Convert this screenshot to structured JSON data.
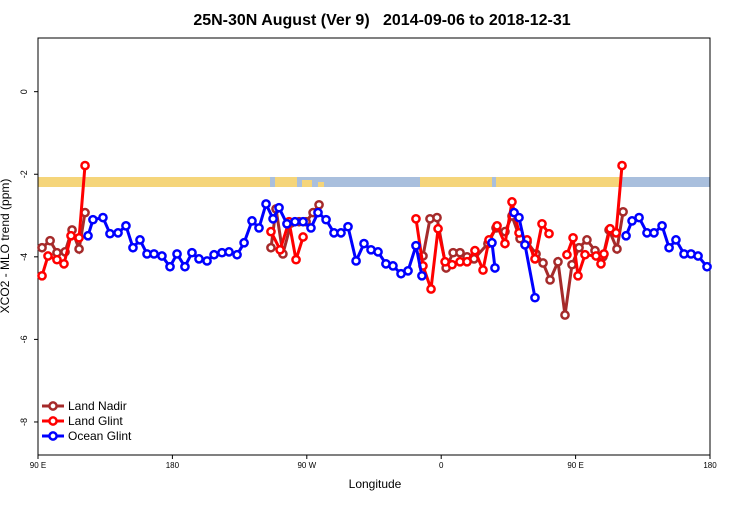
{
  "chart_data": {
    "type": "line",
    "title": "25N-30N August (Ver 9)   2014-09-06 to 2018-12-31",
    "xlabel": "Longitude",
    "ylabel": "XCO2 - MLO trend (ppm)",
    "xlim": [
      90,
      540
    ],
    "xticks": [
      {
        "value": 90,
        "label": "90 E"
      },
      180,
      {
        "value": 270,
        "label": "90 W"
      },
      {
        "value": 360,
        "label": "0"
      },
      {
        "value": 450,
        "label": "90 E"
      },
      {
        "value": 540,
        "label": "180"
      }
    ],
    "ylim": [
      -8.8,
      1.3
    ],
    "yticks": [
      0,
      -2,
      -4,
      -6,
      -8
    ],
    "legend": "lower left",
    "series": [
      {
        "name": "Land Nadir",
        "color": "#a52a2a",
        "x": [
          92.7,
          98.1,
          102.7,
          108.1,
          112.8,
          117.5,
          121.5,
          null,
          246.0,
          249.4,
          254.0,
          259.5,
          264.8,
          269.5,
          274.2,
          278.2,
          null,
          347.8,
          352.5,
          357.2,
          363.3,
          368.0,
          372.6,
          377.3,
          382.0,
          391.3,
          396.7,
          402.7,
          407.4,
          412.8,
          417.5,
          423.5,
          428.2,
          432.9,
          438.2,
          442.9,
          447.6,
          452.3,
          457.6,
          463.0,
          468.3,
          472.4,
          477.7,
          481.8
        ],
        "values": [
          -3.78,
          -3.61,
          -3.9,
          -3.88,
          -3.35,
          -3.81,
          -2.93,
          null,
          -3.78,
          -2.84,
          -3.93,
          -3.18,
          -3.15,
          -3.15,
          -2.93,
          -2.74,
          null,
          -3.98,
          -3.08,
          -3.05,
          -4.27,
          -3.9,
          -3.9,
          -4.0,
          -4.05,
          -3.68,
          -3.3,
          -3.39,
          -3.01,
          -3.56,
          -3.64,
          -3.93,
          -4.15,
          -4.56,
          -4.12,
          -5.41,
          -4.19,
          -3.78,
          -3.59,
          -3.85,
          -4.0,
          -3.35,
          -3.81,
          -2.91
        ]
      },
      {
        "name": "Land Glint",
        "color": "#ff0000",
        "x": [
          92.7,
          96.7,
          102.7,
          107.4,
          112.1,
          117.5,
          121.5,
          null,
          246.0,
          252.1,
          258.1,
          262.8,
          267.5,
          null,
          343.1,
          347.8,
          353.2,
          357.9,
          362.6,
          367.3,
          372.6,
          377.3,
          382.6,
          388.0,
          392.0,
          397.4,
          402.7,
          407.4,
          412.1,
          417.5,
          422.8,
          427.5,
          432.2,
          null,
          444.2,
          448.3,
          451.6,
          456.3,
          463.7,
          467.0,
          469.0,
          473.1,
          477.1,
          481.1
        ],
        "values": [
          -4.46,
          -3.98,
          -4.07,
          -4.17,
          -3.49,
          -3.54,
          -1.79,
          null,
          -3.39,
          -3.83,
          -3.15,
          -4.07,
          -3.52,
          null,
          -3.08,
          -4.22,
          -4.78,
          -3.32,
          -4.12,
          -4.19,
          -4.12,
          -4.12,
          -3.85,
          -4.32,
          -3.59,
          -3.25,
          -3.68,
          -2.67,
          -3.42,
          -3.59,
          -4.05,
          -3.2,
          -3.44,
          null,
          -3.95,
          -3.54,
          -4.46,
          -3.95,
          -3.98,
          -4.17,
          -3.93,
          -3.32,
          -3.42,
          -1.79
        ]
      },
      {
        "name": "Ocean Glint",
        "color": "#0000ff",
        "x": [
          123.5,
          126.8,
          133.5,
          138.2,
          143.6,
          148.9,
          153.6,
          158.3,
          163.0,
          167.7,
          173.0,
          178.4,
          183.1,
          188.4,
          193.1,
          197.8,
          203.2,
          207.9,
          213.2,
          217.9,
          223.3,
          228.0,
          233.3,
          238.0,
          242.7,
          247.4,
          251.4,
          256.7,
          262.1,
          267.5,
          272.8,
          277.5,
          282.9,
          288.2,
          292.9,
          297.6,
          303.0,
          308.3,
          313.0,
          317.7,
          323.0,
          327.7,
          333.1,
          337.8,
          343.1,
          347.1,
          null,
          394.0,
          396.0,
          null,
          408.8,
          412.1,
          416.1,
          422.8,
          null,
          483.8,
          487.8,
          492.5,
          497.8,
          502.5,
          507.9,
          512.6,
          517.2,
          522.6,
          527.3,
          532.0,
          538.0
        ],
        "values": [
          -3.49,
          -3.1,
          -3.05,
          -3.44,
          -3.42,
          -3.25,
          -3.78,
          -3.59,
          -3.93,
          -3.93,
          -3.98,
          -4.24,
          -3.93,
          -4.24,
          -3.9,
          -4.05,
          -4.1,
          -3.95,
          -3.9,
          -3.88,
          -3.95,
          -3.66,
          -3.13,
          -3.3,
          -2.72,
          -3.08,
          -2.81,
          -3.2,
          -3.15,
          -3.15,
          -3.3,
          -2.93,
          -3.1,
          -3.42,
          -3.42,
          -3.27,
          -4.1,
          -3.68,
          -3.83,
          -3.88,
          -4.17,
          -4.22,
          -4.41,
          -4.34,
          -3.73,
          -4.46,
          null,
          -3.66,
          -4.27,
          null,
          -2.93,
          -3.05,
          -3.71,
          -4.99,
          null,
          -3.49,
          -3.13,
          -3.05,
          -3.42,
          -3.42,
          -3.25,
          -3.78,
          -3.59,
          -3.93,
          -3.93,
          -3.98,
          -4.24
        ]
      }
    ]
  }
}
